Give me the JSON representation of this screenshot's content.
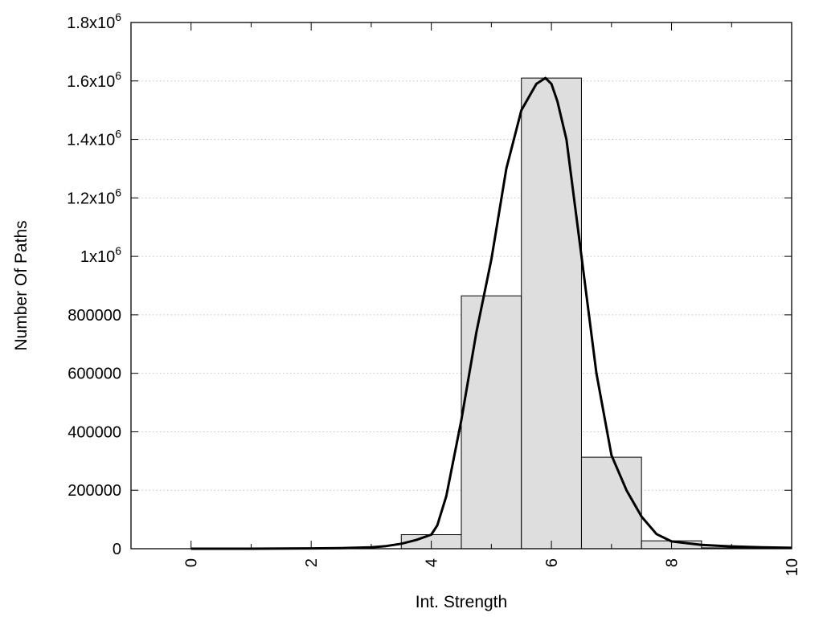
{
  "chart_data": {
    "type": "bar",
    "title": "",
    "xlabel": "Int. Strength",
    "ylabel": "Number Of Paths",
    "xlim": [
      -1,
      10
    ],
    "ylim": [
      0,
      1800000
    ],
    "x_ticks": [
      {
        "value": 0,
        "label": "0"
      },
      {
        "value": 2,
        "label": "2"
      },
      {
        "value": 4,
        "label": "4"
      },
      {
        "value": 6,
        "label": "6"
      },
      {
        "value": 8,
        "label": "8"
      },
      {
        "value": 10,
        "label": "10"
      }
    ],
    "y_ticks": [
      {
        "value": 0,
        "label": "0"
      },
      {
        "value": 200000,
        "label": "200000"
      },
      {
        "value": 400000,
        "label": "400000"
      },
      {
        "value": 600000,
        "label": "600000"
      },
      {
        "value": 800000,
        "label": "800000"
      },
      {
        "value": 1000000,
        "mantissa": "1x10",
        "exponent": "6"
      },
      {
        "value": 1200000,
        "mantissa": "1.2x10",
        "exponent": "6"
      },
      {
        "value": 1400000,
        "mantissa": "1.4x10",
        "exponent": "6"
      },
      {
        "value": 1600000,
        "mantissa": "1.6x10",
        "exponent": "6"
      },
      {
        "value": 1800000,
        "mantissa": "1.8x10",
        "exponent": "6"
      }
    ],
    "grid": true,
    "bars": {
      "x": [
        0,
        1,
        2,
        3,
        4,
        5,
        6,
        7,
        8,
        9
      ],
      "values": [
        0,
        0,
        0,
        0,
        48000,
        865000,
        1610000,
        313000,
        27000,
        3000
      ],
      "bin_width": 1
    },
    "curve": {
      "x": [
        0,
        1,
        2,
        2.5,
        3,
        3.25,
        3.5,
        3.75,
        4,
        4.1,
        4.25,
        4.5,
        4.75,
        5,
        5.25,
        5.5,
        5.75,
        5.9,
        6,
        6.1,
        6.25,
        6.5,
        6.75,
        7,
        7.25,
        7.5,
        7.75,
        8,
        8.5,
        9,
        9.5,
        10
      ],
      "y": [
        0,
        0,
        1000,
        2000,
        5000,
        9000,
        17000,
        30000,
        48000,
        80000,
        180000,
        440000,
        740000,
        990000,
        1300000,
        1500000,
        1590000,
        1610000,
        1590000,
        1530000,
        1400000,
        1000000,
        600000,
        320000,
        200000,
        110000,
        50000,
        25000,
        13000,
        8000,
        5000,
        3000
      ]
    },
    "colors": {
      "bar_fill": "#dedede",
      "bar_stroke": "#000000",
      "curve": "#000000",
      "grid": "#c4c4c4"
    }
  }
}
